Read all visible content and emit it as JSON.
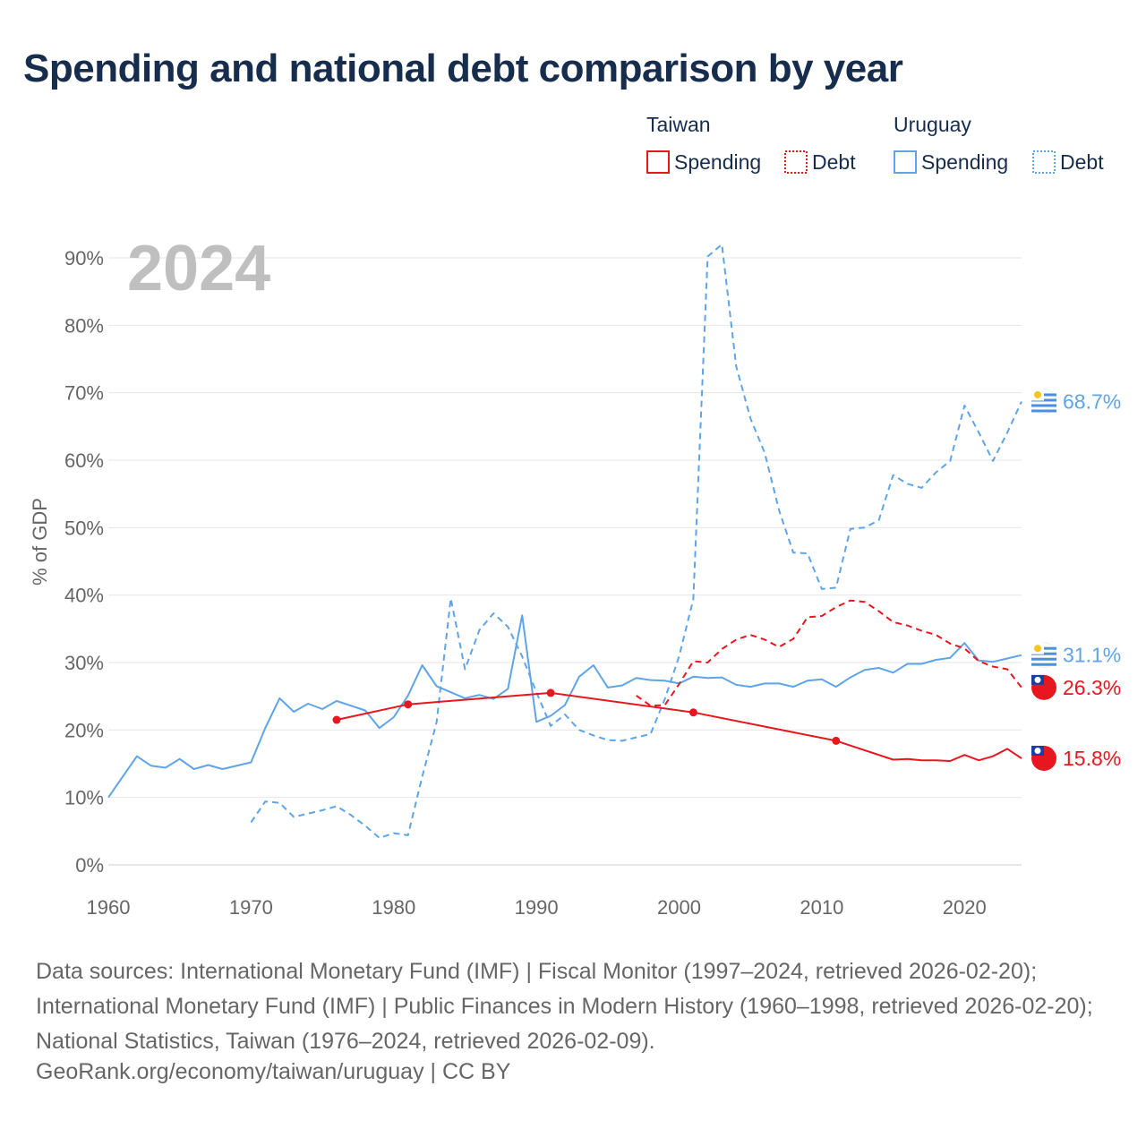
{
  "title": "Spending and national debt comparison by year",
  "chart_data": {
    "type": "line",
    "title": "Spending and national debt comparison by year",
    "ylabel": "% of GDP",
    "xlabel": "",
    "year_label": "2024",
    "xlim": [
      1960,
      2024
    ],
    "ylim": [
      0,
      90
    ],
    "x_ticks": [
      1960,
      1970,
      1980,
      1990,
      2000,
      2010,
      2020
    ],
    "x_tick_labels": [
      "1960",
      "1970",
      "1980",
      "1990",
      "2000",
      "2010",
      "2020"
    ],
    "y_ticks": [
      0,
      10,
      20,
      30,
      40,
      50,
      60,
      70,
      80,
      90
    ],
    "y_tick_labels": [
      "0%",
      "10%",
      "20%",
      "30%",
      "40%",
      "50%",
      "60%",
      "70%",
      "80%",
      "90%"
    ],
    "grid": true,
    "legend_position": "top-right",
    "legend": {
      "groups": [
        {
          "country": "Taiwan",
          "items": [
            {
              "label": "Spending",
              "style": "solid"
            },
            {
              "label": "Debt",
              "style": "dotted"
            }
          ]
        },
        {
          "country": "Uruguay",
          "items": [
            {
              "label": "Spending",
              "style": "solid"
            },
            {
              "label": "Debt",
              "style": "dotted"
            }
          ]
        }
      ]
    },
    "series": [
      {
        "name": "Uruguay Spending",
        "country": "Uruguay",
        "kind": "Spending",
        "color": "#5fa4e6",
        "dashed": false,
        "end_label": "31.1%",
        "x": [
          1960,
          1962,
          1963,
          1964,
          1965,
          1966,
          1967,
          1968,
          1970,
          1971,
          1972,
          1973,
          1974,
          1975,
          1976,
          1978,
          1979,
          1980,
          1981,
          1982,
          1983,
          1985,
          1986,
          1987,
          1988,
          1989,
          1990,
          1991,
          1992,
          1993,
          1994,
          1995,
          1996,
          1997,
          1998,
          1999,
          2000,
          2001,
          2002,
          2003,
          2004,
          2005,
          2006,
          2007,
          2008,
          2009,
          2010,
          2011,
          2012,
          2013,
          2014,
          2015,
          2016,
          2017,
          2018,
          2019,
          2020,
          2021,
          2022,
          2023,
          2024
        ],
        "y": [
          10,
          16.1,
          14.7,
          14.4,
          15.7,
          14.2,
          14.8,
          14.2,
          15.2,
          20.3,
          24.7,
          22.7,
          23.9,
          23.1,
          24.3,
          22.9,
          20.3,
          21.9,
          25.1,
          29.6,
          26.5,
          24.7,
          25.2,
          24.6,
          26.1,
          37,
          21.2,
          22.1,
          23.7,
          27.9,
          29.6,
          26.3,
          26.6,
          27.7,
          27.4,
          27.3,
          26.9,
          27.9,
          27.7,
          27.8,
          26.7,
          26.4,
          26.9,
          26.9,
          26.4,
          27.3,
          27.5,
          26.4,
          27.8,
          28.9,
          29.2,
          28.5,
          29.8,
          29.8,
          30.4,
          30.7,
          32.9,
          30.3,
          30.1,
          30.6,
          31.1
        ]
      },
      {
        "name": "Uruguay Debt",
        "country": "Uruguay",
        "kind": "Debt",
        "color": "#5fa4e6",
        "dashed": true,
        "end_label": "68.7%",
        "x": [
          1970,
          1971,
          1972,
          1973,
          1974,
          1975,
          1976,
          1977,
          1978,
          1979,
          1980,
          1981,
          1982,
          1983,
          1984,
          1985,
          1986,
          1987,
          1988,
          1989,
          1990,
          1991,
          1992,
          1993,
          1994,
          1995,
          1996,
          1997,
          1998,
          1999,
          2000,
          2001,
          2002,
          2003,
          2004,
          2005,
          2006,
          2007,
          2008,
          2009,
          2010,
          2011,
          2012,
          2013,
          2014,
          2015,
          2016,
          2017,
          2018,
          2019,
          2020,
          2021,
          2022,
          2023,
          2024
        ],
        "y": [
          6.3,
          9.4,
          9.2,
          7.1,
          7.6,
          8.1,
          8.7,
          7.4,
          5.8,
          4,
          4.7,
          4.4,
          13.1,
          21.1,
          39.5,
          29,
          34.8,
          37.3,
          35.3,
          30.9,
          25.6,
          20.6,
          22.3,
          20,
          19.2,
          18.5,
          18.4,
          18.9,
          19.4,
          24.6,
          30.9,
          39.4,
          90.2,
          92,
          73.9,
          66.2,
          61.1,
          52.6,
          46.3,
          46.2,
          40.9,
          41.1,
          49.8,
          50,
          51.1,
          57.8,
          56.5,
          55.9,
          58.2,
          59.9,
          68.1,
          64.1,
          59.9,
          64.1,
          68.7
        ]
      },
      {
        "name": "Taiwan Spending",
        "country": "Taiwan",
        "kind": "Spending",
        "color": "#e8171f",
        "dashed": false,
        "end_label": "15.8%",
        "x": [
          1976,
          1981,
          1991,
          2001,
          2011,
          2015,
          2016,
          2017,
          2018,
          2019,
          2020,
          2021,
          2022,
          2023,
          2024
        ],
        "y": [
          21.5,
          23.8,
          25.5,
          22.6,
          18.4,
          15.6,
          15.7,
          15.5,
          15.5,
          15.4,
          16.3,
          15.5,
          16.1,
          17.2,
          15.8
        ],
        "markers": [
          1976,
          1981,
          1991,
          2001,
          2011
        ]
      },
      {
        "name": "Taiwan Debt",
        "country": "Taiwan",
        "kind": "Debt",
        "color": "#e8171f",
        "dashed": true,
        "end_label": "26.3%",
        "x": [
          1997,
          1998,
          1999,
          2000,
          2001,
          2002,
          2003,
          2004,
          2005,
          2006,
          2007,
          2008,
          2009,
          2010,
          2011,
          2012,
          2013,
          2014,
          2015,
          2016,
          2017,
          2018,
          2019,
          2020,
          2021,
          2022,
          2023,
          2024
        ],
        "y": [
          25.1,
          23.6,
          23.7,
          26.8,
          30.2,
          30,
          32,
          33.4,
          34.1,
          33.4,
          32.3,
          33.5,
          36.7,
          36.9,
          38.2,
          39.2,
          39,
          37.6,
          36,
          35.5,
          34.7,
          34.1,
          32.8,
          32.1,
          30.2,
          29.4,
          29,
          26.3
        ]
      }
    ]
  },
  "sources": "Data sources: International Monetary Fund (IMF) | Fiscal Monitor (1997–2024, retrieved 2026-02-20); International Monetary Fund (IMF) | Public Finances in Modern History (1960–1998, retrieved 2026-02-20); National Statistics, Taiwan (1976–2024, retrieved 2026-02-09).",
  "attribution": "GeoRank.org/economy/taiwan/uruguay | CC BY",
  "colors": {
    "title": "#172d4e",
    "taiwan": "#e8171f",
    "uruguay": "#5fa4e6",
    "grid": "#e6e6e6",
    "axis_text": "#666666",
    "year_watermark": "#bfbfbf"
  }
}
